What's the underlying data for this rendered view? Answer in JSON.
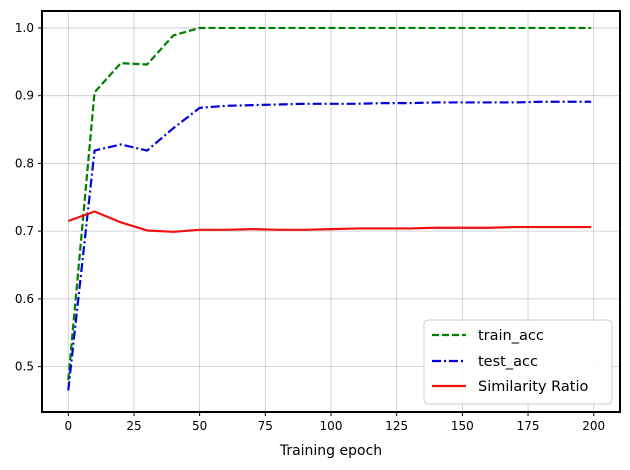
{
  "chart_data": {
    "type": "line",
    "title": "",
    "xlabel": "Training epoch",
    "ylabel": "",
    "xlim": [
      -10,
      210
    ],
    "ylim": [
      0.433,
      1.025
    ],
    "xticks": [
      0,
      25,
      50,
      75,
      100,
      125,
      150,
      175,
      200
    ],
    "xtick_labels": [
      "0",
      "25",
      "50",
      "75",
      "100",
      "125",
      "150",
      "175",
      "200"
    ],
    "yticks": [
      0.5,
      0.6,
      0.7,
      0.8,
      0.9,
      1.0
    ],
    "ytick_labels": [
      "0.5",
      "0.6",
      "0.7",
      "0.8",
      "0.9",
      "1.0"
    ],
    "grid": true,
    "legend_position": "lower-right",
    "series": [
      {
        "name": "train_acc",
        "color": "#008000",
        "style": "dashed",
        "x": [
          0,
          10,
          20,
          30,
          40,
          50,
          60,
          70,
          80,
          90,
          100,
          110,
          120,
          130,
          140,
          150,
          160,
          170,
          180,
          190,
          199
        ],
        "y": [
          0.48,
          0.905,
          0.948,
          0.946,
          0.989,
          1.0,
          1.0,
          1.0,
          1.0,
          1.0,
          1.0,
          1.0,
          1.0,
          1.0,
          1.0,
          1.0,
          1.0,
          1.0,
          1.0,
          1.0,
          1.0
        ]
      },
      {
        "name": "test_acc",
        "color": "#0000dd",
        "style": "dashdot",
        "x": [
          0,
          10,
          20,
          30,
          40,
          50,
          60,
          70,
          80,
          90,
          100,
          110,
          120,
          130,
          140,
          150,
          160,
          170,
          180,
          190,
          199
        ],
        "y": [
          0.465,
          0.819,
          0.828,
          0.819,
          0.852,
          0.882,
          0.885,
          0.886,
          0.887,
          0.888,
          0.888,
          0.888,
          0.889,
          0.889,
          0.89,
          0.89,
          0.89,
          0.89,
          0.891,
          0.891,
          0.891
        ]
      },
      {
        "name": "Similarity Ratio",
        "color": "#ee1111",
        "style": "solid",
        "x": [
          0,
          10,
          20,
          30,
          40,
          50,
          60,
          70,
          80,
          90,
          100,
          110,
          120,
          130,
          140,
          150,
          160,
          170,
          180,
          190,
          199
        ],
        "y": [
          0.715,
          0.729,
          0.713,
          0.701,
          0.699,
          0.702,
          0.702,
          0.703,
          0.702,
          0.702,
          0.703,
          0.704,
          0.704,
          0.704,
          0.705,
          0.705,
          0.705,
          0.706,
          0.706,
          0.706,
          0.706
        ]
      }
    ]
  }
}
